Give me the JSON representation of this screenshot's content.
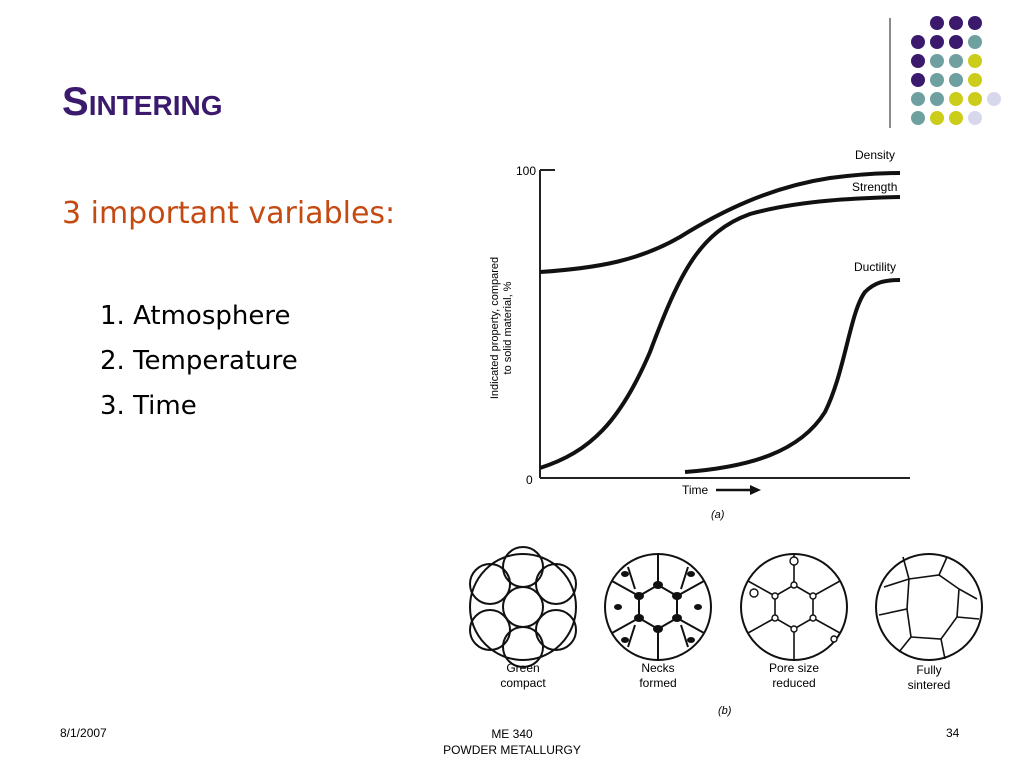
{
  "slide": {
    "title_initial": "S",
    "title_rest": "INTERING",
    "subtitle": "3 important variables:",
    "variables": [
      "1. Atmosphere",
      "2. Temperature",
      "3. Time"
    ]
  },
  "figure_a": {
    "label": "(a)",
    "curve_labels": [
      "Density",
      "Strength",
      "Ductility"
    ],
    "y_axis_label_line1": "Indicated property, compared",
    "y_axis_label_line2": "to solid material, %",
    "x_axis_label": "Time",
    "y_tick_top": "100",
    "y_tick_bottom": "0"
  },
  "figure_b": {
    "label": "(b)",
    "stages": [
      {
        "line1": "Green",
        "line2": "compact"
      },
      {
        "line1": "Necks",
        "line2": "formed"
      },
      {
        "line1": "Pore size",
        "line2": "reduced"
      },
      {
        "line1": "Fully",
        "line2": "sintered"
      }
    ]
  },
  "footer": {
    "date": "8/1/2007",
    "course": "ME 340",
    "course_title": "POWDER METALLURGY",
    "page": "34"
  },
  "colors": {
    "title": "#3b1a6e",
    "subtitle": "#c44a12",
    "dot_purple": "#3b1a6e",
    "dot_teal": "#6fa0a0",
    "dot_yellow": "#cccc1a",
    "dot_lavender": "#d8d8ec"
  }
}
